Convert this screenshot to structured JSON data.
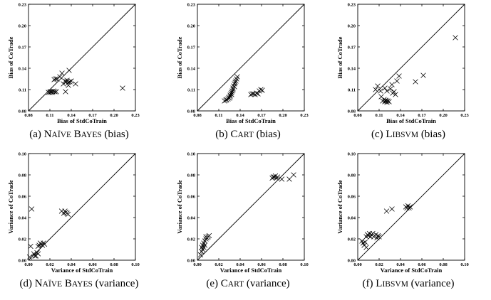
{
  "chart_data": [
    {
      "type": "scatter",
      "caption": {
        "prefix": "(a) ",
        "name": "Naïve Bayes",
        "suffix": " (bias)"
      },
      "xlabel": "Bias of StdCoTrain",
      "ylabel": "Bias of CoTrade",
      "xlim": [
        0.08,
        0.23
      ],
      "ylim": [
        0.08,
        0.23
      ],
      "xticks": [
        "0.08",
        "0.11",
        "0.14",
        "0.17",
        "0.20",
        "0.23"
      ],
      "yticks": [
        "0.08",
        "0.11",
        "0.14",
        "0.17",
        "0.20",
        "0.23"
      ],
      "diagonal": true,
      "points": [
        [
          0.108,
          0.106
        ],
        [
          0.11,
          0.106
        ],
        [
          0.111,
          0.107
        ],
        [
          0.112,
          0.107
        ],
        [
          0.113,
          0.106
        ],
        [
          0.114,
          0.107
        ],
        [
          0.115,
          0.108
        ],
        [
          0.117,
          0.107
        ],
        [
          0.119,
          0.107
        ],
        [
          0.116,
          0.124
        ],
        [
          0.118,
          0.125
        ],
        [
          0.12,
          0.125
        ],
        [
          0.124,
          0.128
        ],
        [
          0.127,
          0.133
        ],
        [
          0.129,
          0.118
        ],
        [
          0.131,
          0.122
        ],
        [
          0.133,
          0.121
        ],
        [
          0.134,
          0.123
        ],
        [
          0.136,
          0.12
        ],
        [
          0.136,
          0.116
        ],
        [
          0.137,
          0.137
        ],
        [
          0.138,
          0.121
        ],
        [
          0.14,
          0.122
        ],
        [
          0.146,
          0.118
        ],
        [
          0.132,
          0.107
        ],
        [
          0.212,
          0.112
        ]
      ]
    },
    {
      "type": "scatter",
      "caption": {
        "prefix": "(b) ",
        "name": "Cart",
        "suffix": " (bias)"
      },
      "xlabel": "Bias of StdCoTrain",
      "ylabel": "Bias of CoTrade",
      "xlim": [
        0.08,
        0.23
      ],
      "ylim": [
        0.08,
        0.23
      ],
      "xticks": [
        "0.08",
        "0.11",
        "0.14",
        "0.17",
        "0.20",
        "0.23"
      ],
      "yticks": [
        "0.08",
        "0.11",
        "0.14",
        "0.17",
        "0.20",
        "0.23"
      ],
      "diagonal": true,
      "points": [
        [
          0.118,
          0.094
        ],
        [
          0.12,
          0.095
        ],
        [
          0.121,
          0.096
        ],
        [
          0.123,
          0.097
        ],
        [
          0.124,
          0.099
        ],
        [
          0.125,
          0.098
        ],
        [
          0.126,
          0.1
        ],
        [
          0.126,
          0.102
        ],
        [
          0.127,
          0.104
        ],
        [
          0.128,
          0.106
        ],
        [
          0.128,
          0.103
        ],
        [
          0.129,
          0.108
        ],
        [
          0.13,
          0.11
        ],
        [
          0.13,
          0.112
        ],
        [
          0.131,
          0.115
        ],
        [
          0.132,
          0.114
        ],
        [
          0.132,
          0.118
        ],
        [
          0.133,
          0.12
        ],
        [
          0.134,
          0.122
        ],
        [
          0.135,
          0.125
        ],
        [
          0.136,
          0.128
        ],
        [
          0.155,
          0.103
        ],
        [
          0.157,
          0.104
        ],
        [
          0.159,
          0.104
        ],
        [
          0.161,
          0.103
        ],
        [
          0.163,
          0.105
        ],
        [
          0.165,
          0.104
        ],
        [
          0.167,
          0.108
        ],
        [
          0.169,
          0.11
        ],
        [
          0.171,
          0.109
        ]
      ]
    },
    {
      "type": "scatter",
      "caption": {
        "prefix": "(c) ",
        "name": "Libsvm",
        "suffix": " (bias)"
      },
      "xlabel": "Bias of StdCoTrain",
      "ylabel": "Bias of CoTrade",
      "xlim": [
        0.08,
        0.23
      ],
      "ylim": [
        0.08,
        0.23
      ],
      "xticks": [
        "0.08",
        "0.11",
        "0.14",
        "0.17",
        "0.20",
        "0.23"
      ],
      "yticks": [
        "0.08",
        "0.11",
        "0.14",
        "0.17",
        "0.20",
        "0.23"
      ],
      "diagonal": true,
      "points": [
        [
          0.105,
          0.11
        ],
        [
          0.108,
          0.115
        ],
        [
          0.112,
          0.108
        ],
        [
          0.113,
          0.1
        ],
        [
          0.115,
          0.094
        ],
        [
          0.117,
          0.096
        ],
        [
          0.118,
          0.093
        ],
        [
          0.119,
          0.095
        ],
        [
          0.12,
          0.094
        ],
        [
          0.121,
          0.092
        ],
        [
          0.122,
          0.094
        ],
        [
          0.124,
          0.093
        ],
        [
          0.118,
          0.112
        ],
        [
          0.121,
          0.108
        ],
        [
          0.126,
          0.111
        ],
        [
          0.128,
          0.117
        ],
        [
          0.129,
          0.105
        ],
        [
          0.131,
          0.107
        ],
        [
          0.133,
          0.103
        ],
        [
          0.135,
          0.122
        ],
        [
          0.138,
          0.129
        ],
        [
          0.161,
          0.121
        ],
        [
          0.172,
          0.13
        ],
        [
          0.217,
          0.183
        ]
      ]
    },
    {
      "type": "scatter",
      "caption": {
        "prefix": "(d) ",
        "name": "Naïve Bayes",
        "suffix": " (variance)"
      },
      "xlabel": "Variance of StdCoTrain",
      "ylabel": "Variance of CoTrade",
      "xlim": [
        0,
        0.1
      ],
      "ylim": [
        0,
        0.1
      ],
      "xticks": [
        "0.00",
        "0.02",
        "0.04",
        "0.06",
        "0.08",
        "0.10"
      ],
      "yticks": [
        "0.00",
        "0.02",
        "0.04",
        "0.06",
        "0.08",
        "0.10"
      ],
      "diagonal": true,
      "points": [
        [
          0.001,
          0.003
        ],
        [
          0.002,
          0.013
        ],
        [
          0.003,
          0.048
        ],
        [
          0.005,
          0.006
        ],
        [
          0.006,
          0.004
        ],
        [
          0.007,
          0.004
        ],
        [
          0.008,
          0.007
        ],
        [
          0.009,
          0.006
        ],
        [
          0.009,
          0.013
        ],
        [
          0.01,
          0.014
        ],
        [
          0.011,
          0.016
        ],
        [
          0.012,
          0.015
        ],
        [
          0.013,
          0.014
        ],
        [
          0.014,
          0.016
        ],
        [
          0.015,
          0.015
        ],
        [
          0.031,
          0.046
        ],
        [
          0.033,
          0.044
        ],
        [
          0.034,
          0.046
        ],
        [
          0.035,
          0.045
        ],
        [
          0.036,
          0.044
        ],
        [
          0.037,
          0.043
        ]
      ]
    },
    {
      "type": "scatter",
      "caption": {
        "prefix": "(e) ",
        "name": "Cart",
        "suffix": " (variance)"
      },
      "xlabel": "Variance of StdCoTrain",
      "ylabel": "Variance of CoTrade",
      "xlim": [
        0,
        0.1
      ],
      "ylim": [
        0,
        0.1
      ],
      "xticks": [
        "0.00",
        "0.02",
        "0.04",
        "0.06",
        "0.08",
        "0.10"
      ],
      "yticks": [
        "0.00",
        "0.02",
        "0.04",
        "0.06",
        "0.08",
        "0.10"
      ],
      "diagonal": true,
      "points": [
        [
          0.003,
          0.005
        ],
        [
          0.004,
          0.008
        ],
        [
          0.004,
          0.012
        ],
        [
          0.005,
          0.01
        ],
        [
          0.005,
          0.014
        ],
        [
          0.006,
          0.012
        ],
        [
          0.006,
          0.016
        ],
        [
          0.007,
          0.014
        ],
        [
          0.007,
          0.018
        ],
        [
          0.008,
          0.02
        ],
        [
          0.008,
          0.022
        ],
        [
          0.009,
          0.021
        ],
        [
          0.01,
          0.022
        ],
        [
          0.011,
          0.023
        ],
        [
          0.07,
          0.077
        ],
        [
          0.071,
          0.078
        ],
        [
          0.072,
          0.078
        ],
        [
          0.073,
          0.079
        ],
        [
          0.074,
          0.077
        ],
        [
          0.075,
          0.078
        ],
        [
          0.079,
          0.076
        ],
        [
          0.086,
          0.076
        ],
        [
          0.09,
          0.08
        ]
      ]
    },
    {
      "type": "scatter",
      "caption": {
        "prefix": "(f) ",
        "name": "Libsvm",
        "suffix": " (variance)"
      },
      "xlabel": "Variance of StdCoTrain",
      "ylabel": "Variance of CoTrade",
      "xlim": [
        0,
        0.1
      ],
      "ylim": [
        0,
        0.1
      ],
      "xticks": [
        "0.00",
        "0.02",
        "0.04",
        "0.06",
        "0.08",
        "0.10"
      ],
      "yticks": [
        "0.00",
        "0.02",
        "0.04",
        "0.06",
        "0.08",
        "0.10"
      ],
      "diagonal": true,
      "points": [
        [
          0.004,
          0.018
        ],
        [
          0.005,
          0.016
        ],
        [
          0.006,
          0.014
        ],
        [
          0.007,
          0.017
        ],
        [
          0.008,
          0.012
        ],
        [
          0.008,
          0.022
        ],
        [
          0.009,
          0.024
        ],
        [
          0.01,
          0.023
        ],
        [
          0.011,
          0.025
        ],
        [
          0.012,
          0.022
        ],
        [
          0.013,
          0.024
        ],
        [
          0.014,
          0.025
        ],
        [
          0.015,
          0.022
        ],
        [
          0.017,
          0.024
        ],
        [
          0.018,
          0.021
        ],
        [
          0.019,
          0.023
        ],
        [
          0.02,
          0.022
        ],
        [
          0.027,
          0.046
        ],
        [
          0.032,
          0.048
        ],
        [
          0.045,
          0.05
        ],
        [
          0.046,
          0.049
        ],
        [
          0.047,
          0.051
        ],
        [
          0.048,
          0.049
        ],
        [
          0.049,
          0.05
        ]
      ]
    }
  ]
}
